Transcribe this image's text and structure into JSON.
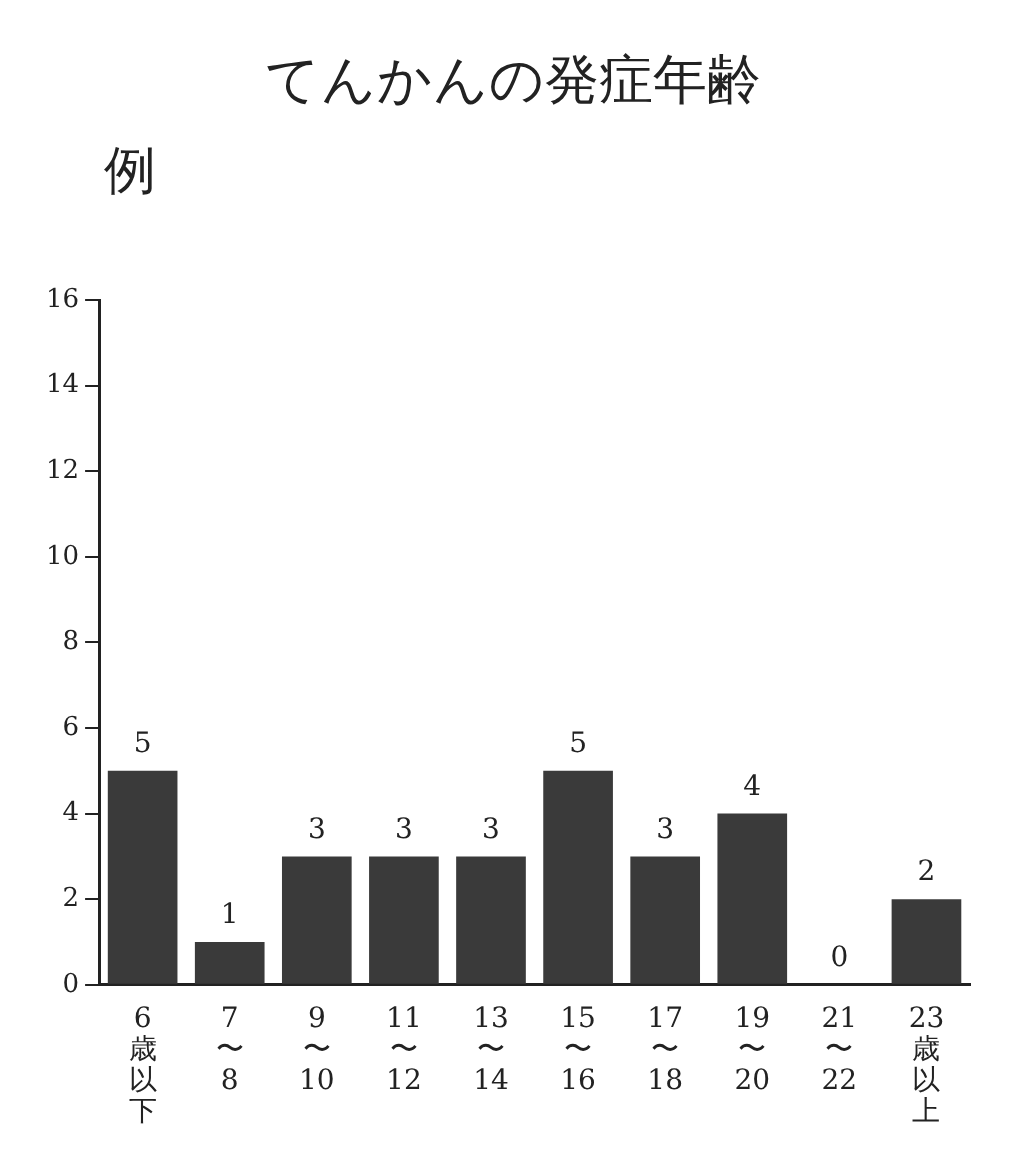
{
  "chart_data": {
    "type": "bar",
    "title": "てんかんの発症年齢",
    "ylabel": "例",
    "categories": [
      "6歳以下",
      "7〜8",
      "9〜10",
      "11〜12",
      "13〜14",
      "15〜16",
      "17〜18",
      "19〜20",
      "21〜22",
      "23歳以上"
    ],
    "values": [
      5,
      1,
      3,
      3,
      3,
      5,
      3,
      4,
      0,
      2
    ],
    "color": "#3a3a3a",
    "ylim": [
      0,
      16
    ],
    "yticks": [
      0,
      2,
      4,
      6,
      8,
      10,
      12,
      14,
      16
    ],
    "data_labels": true,
    "grid": false,
    "legend": false
  }
}
